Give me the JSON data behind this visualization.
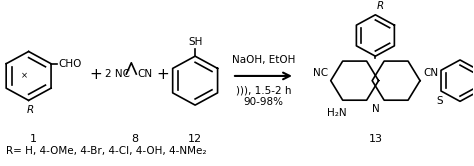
{
  "background_color": "#ffffff",
  "footer_text": "R= H, 4-OMe, 4-Br, 4-Cl, 4-OH, 4-NMe₂",
  "conditions_line1": "NaOH, EtOH",
  "conditions_line2": "))), 1.5-2 h",
  "conditions_line3": "90-98%"
}
